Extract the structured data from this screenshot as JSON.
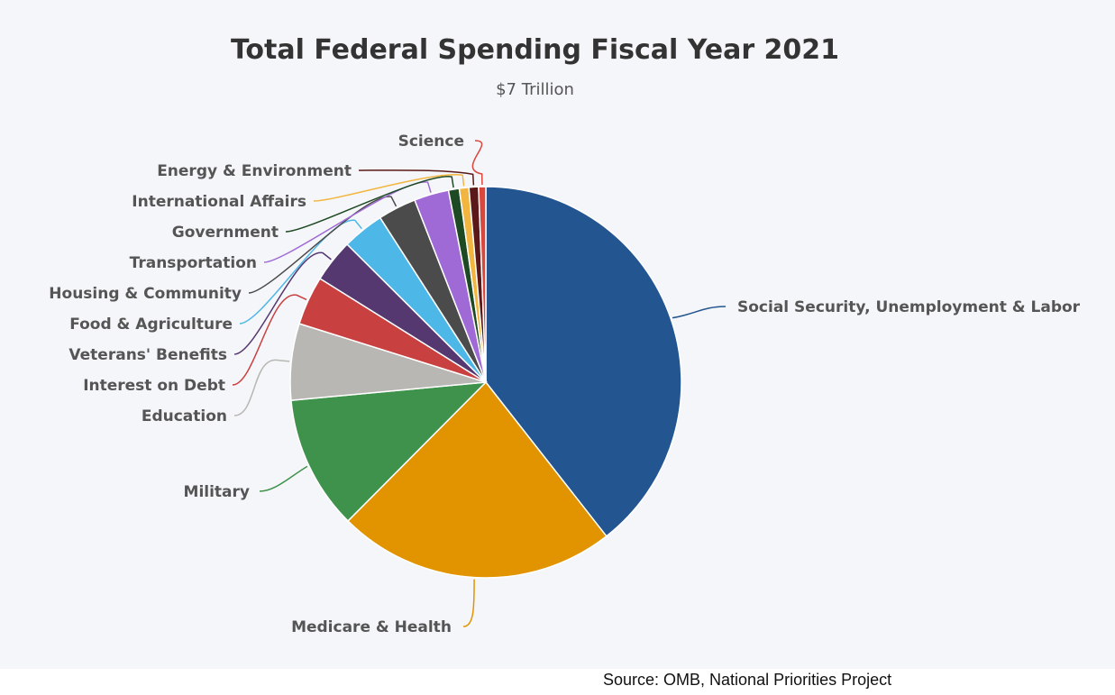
{
  "chart_data": {
    "type": "pie",
    "title": "Total Federal Spending Fiscal Year 2021",
    "subtitle": "$7 Trillion",
    "slices": [
      {
        "label": "Social Security, Unemployment & Labor",
        "value": 39.9,
        "color": "#235590"
      },
      {
        "label": "Medicare & Health",
        "value": 23.3,
        "color": "#e29400"
      },
      {
        "label": "Military",
        "value": 11.2,
        "color": "#3f924b"
      },
      {
        "label": "Education",
        "value": 6.4,
        "color": "#b8b7b3"
      },
      {
        "label": "Interest on Debt",
        "value": 4.1,
        "color": "#c94040"
      },
      {
        "label": "Veterans' Benefits",
        "value": 3.6,
        "color": "#54386f"
      },
      {
        "label": "Food & Agriculture",
        "value": 3.5,
        "color": "#4db7e8"
      },
      {
        "label": "Housing & Community",
        "value": 3.2,
        "color": "#4b4b4b"
      },
      {
        "label": "Transportation",
        "value": 2.9,
        "color": "#9f6ad6"
      },
      {
        "label": "Government",
        "value": 0.9,
        "color": "#1d4a22"
      },
      {
        "label": "International Affairs",
        "value": 0.8,
        "color": "#f2b640"
      },
      {
        "label": "Energy & Environment",
        "value": 0.8,
        "color": "#5a1818"
      },
      {
        "label": "Science",
        "value": 0.6,
        "color": "#d9473d"
      }
    ]
  },
  "source": "Source: OMB, National Priorities Project"
}
